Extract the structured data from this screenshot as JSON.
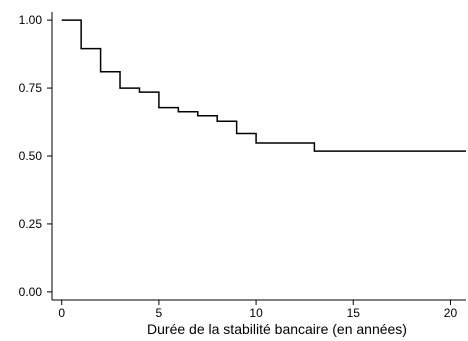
{
  "chart_data": {
    "type": "line",
    "step": true,
    "title": "",
    "xlabel": "Durée de la stabilité bancaire (en années)",
    "ylabel": "",
    "xlim": [
      -0.5,
      20.8
    ],
    "ylim": [
      -0.03,
      1.03
    ],
    "xticks": [
      0,
      5,
      10,
      15,
      20
    ],
    "xtick_labels": [
      "0",
      "5",
      "10",
      "15",
      "20"
    ],
    "yticks": [
      0,
      0.25,
      0.5,
      0.75,
      1
    ],
    "ytick_labels": [
      "0.00",
      "0.25",
      "0.50",
      "0.75",
      "1.00"
    ],
    "grid": false,
    "legend": "none",
    "series": [
      {
        "x": [
          0,
          1,
          2,
          3,
          4,
          5,
          6,
          7,
          8,
          9,
          10,
          13,
          20.8
        ],
        "y": [
          1.0,
          0.895,
          0.81,
          0.75,
          0.735,
          0.678,
          0.663,
          0.648,
          0.628,
          0.583,
          0.548,
          0.518,
          0.518
        ]
      }
    ],
    "line_color": "#000000"
  }
}
